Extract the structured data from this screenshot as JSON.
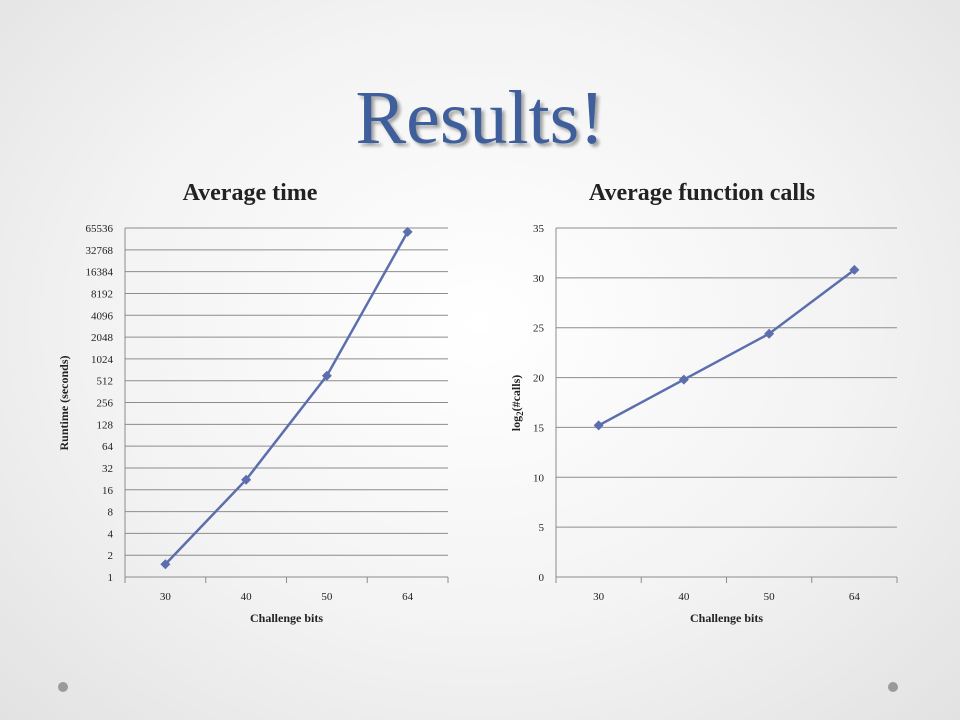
{
  "slide": {
    "title": "Results!"
  },
  "colors": {
    "series": "#5b6eae",
    "title": "#3f5f9c",
    "grid": "#8c8c8c"
  },
  "chart_data": [
    {
      "type": "line",
      "title": "Average time",
      "xlabel": "Challenge bits",
      "ylabel": "Runtime (seconds)",
      "y_scale": "log2",
      "categories": [
        "30",
        "40",
        "50",
        "64"
      ],
      "y_ticks": [
        1,
        2,
        4,
        8,
        16,
        32,
        64,
        128,
        256,
        512,
        1024,
        2048,
        4096,
        8192,
        16384,
        32768,
        65536
      ],
      "ylim": [
        1,
        65536
      ],
      "series": [
        {
          "values": [
            1.5,
            22,
            600,
            58000
          ]
        }
      ],
      "marker": "diamond",
      "grid": true,
      "legend": "none"
    },
    {
      "type": "line",
      "title": "Average function calls",
      "xlabel": "Challenge bits",
      "ylabel": "log2(#calls)",
      "categories": [
        "30",
        "40",
        "50",
        "64"
      ],
      "y_ticks": [
        0,
        5,
        10,
        15,
        20,
        25,
        30,
        35
      ],
      "ylim": [
        0,
        35
      ],
      "series": [
        {
          "values": [
            15.2,
            19.8,
            24.4,
            30.8
          ]
        }
      ],
      "marker": "diamond",
      "grid": true,
      "legend": "none"
    }
  ]
}
